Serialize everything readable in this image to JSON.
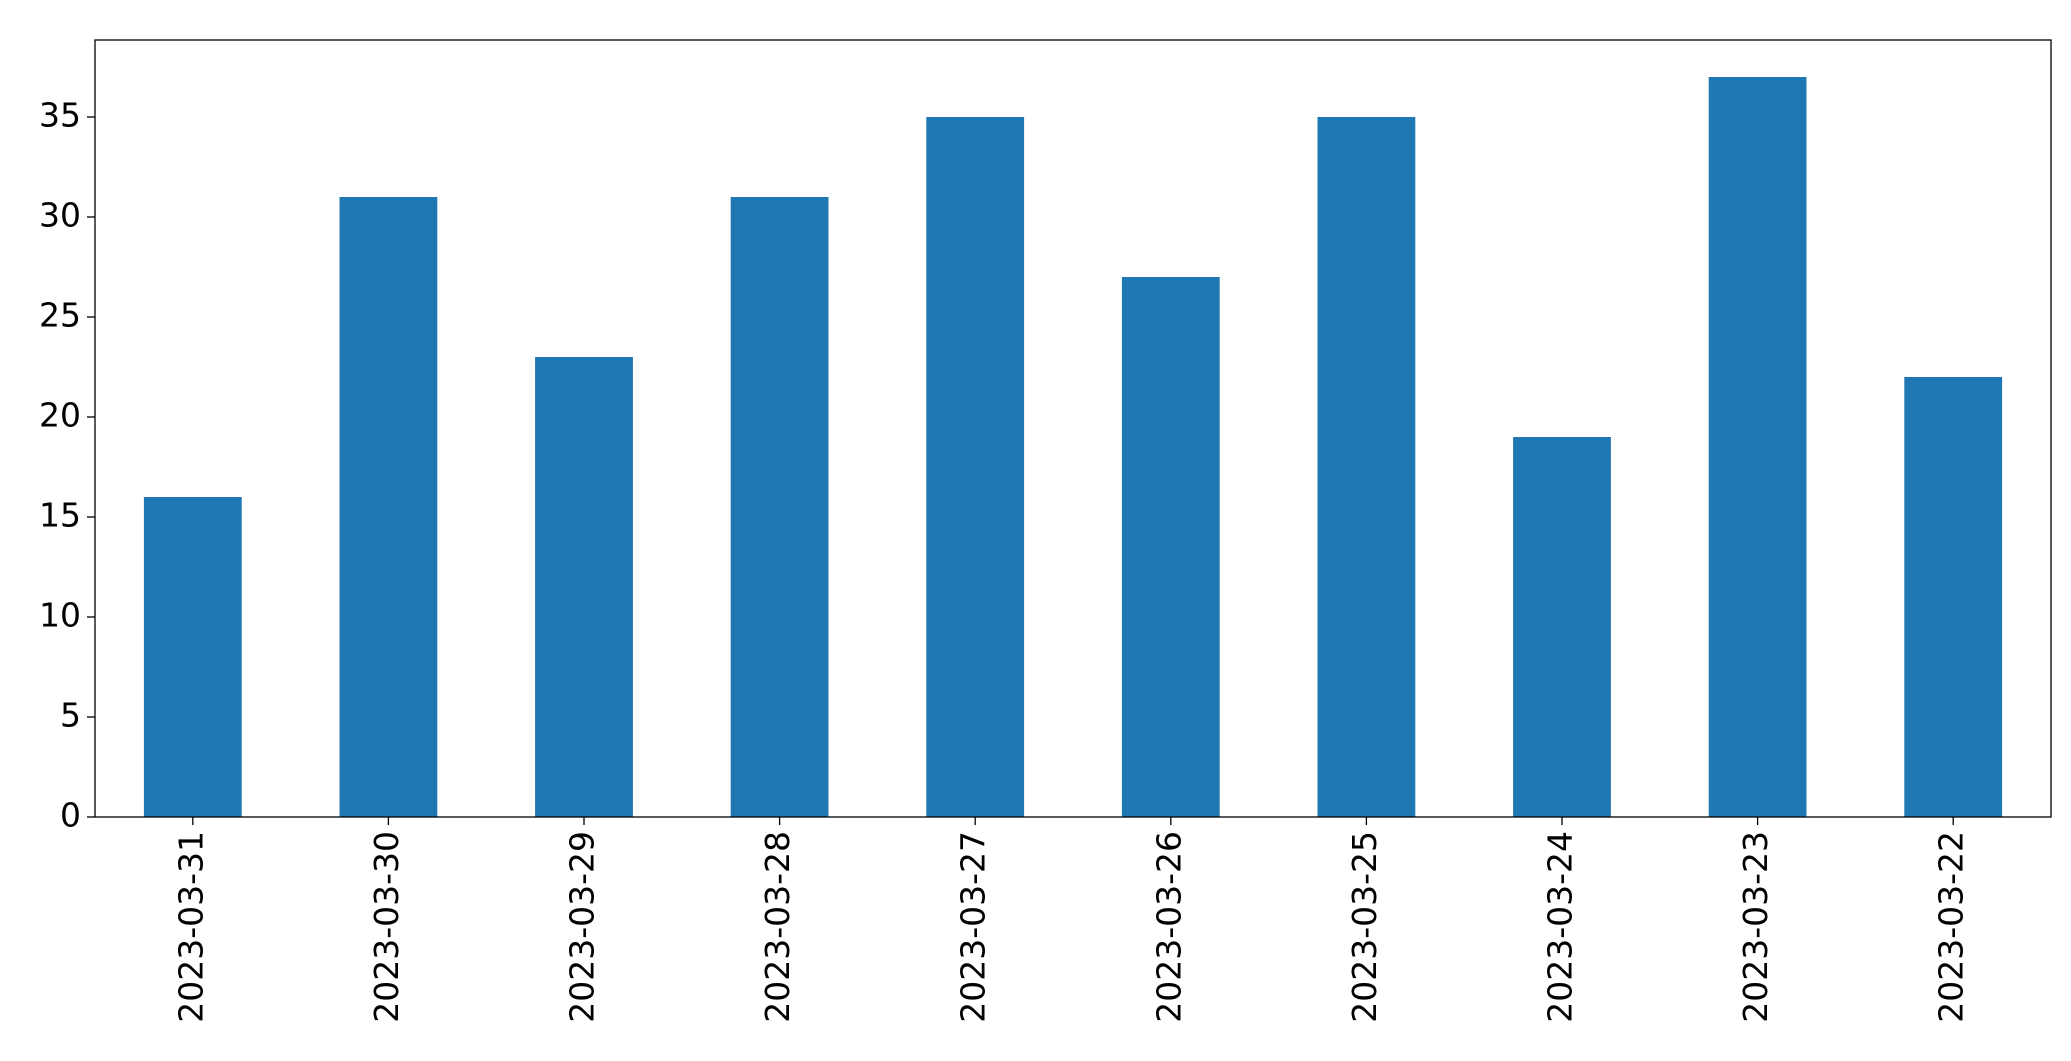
{
  "chart_data": {
    "type": "bar",
    "categories": [
      "2023-03-31",
      "2023-03-30",
      "2023-03-29",
      "2023-03-28",
      "2023-03-27",
      "2023-03-26",
      "2023-03-25",
      "2023-03-24",
      "2023-03-23",
      "2023-03-22"
    ],
    "values": [
      16,
      31,
      23,
      31,
      35,
      27,
      35,
      19,
      37,
      22
    ],
    "color": "#1f77b4",
    "ylim": [
      0,
      38.85
    ],
    "yticks": [
      0,
      5,
      10,
      15,
      20,
      25,
      30,
      35
    ],
    "grid": false
  }
}
